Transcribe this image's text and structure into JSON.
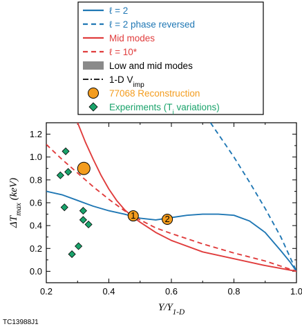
{
  "figure_id": "TC13988J1",
  "colors": {
    "blue": "#1f77b4",
    "red": "#e03c3c",
    "orange": "#f39c1e",
    "green": "#1aa36b",
    "gray": "#8a8a8a"
  },
  "chart_data": {
    "type": "line",
    "title": "",
    "xlabel": {
      "main": "Y/Y",
      "sub": "1-D"
    },
    "ylabel": {
      "main": "ΔT",
      "sub": "max",
      "unit": " (keV)"
    },
    "xlim": [
      0.2,
      1.0
    ],
    "ylim": [
      -0.1,
      1.3
    ],
    "xticks": [
      "0.2",
      "0.4",
      "0.6",
      "0.8",
      "1.0"
    ],
    "yticks": [
      "0.0",
      "0.2",
      "0.4",
      "0.6",
      "0.8",
      "1.0",
      "1.2"
    ],
    "legend_position": "top-center",
    "legend": [
      {
        "key": "l2",
        "pre": "ℓ = 2",
        "sub": "",
        "post": "",
        "color": "#1f77b4",
        "style": "solid"
      },
      {
        "key": "l2pr",
        "pre": "ℓ = 2 phase reversed",
        "sub": "",
        "post": "",
        "color": "#1f77b4",
        "style": "dashed"
      },
      {
        "key": "mid",
        "pre": "Mid modes",
        "sub": "",
        "post": "",
        "color": "#e03c3c",
        "style": "solid"
      },
      {
        "key": "l10",
        "pre": "ℓ = 10*",
        "sub": "",
        "post": "",
        "color": "#e03c3c",
        "style": "dashed"
      },
      {
        "key": "lowmid",
        "pre": "Low and mid modes",
        "sub": "",
        "post": "",
        "color": "#000000",
        "style": "band"
      },
      {
        "key": "vimp",
        "pre": "1-D V",
        "sub": "imp",
        "post": "",
        "color": "#000000",
        "style": "dashdot"
      },
      {
        "key": "recon",
        "pre": "77068 Reconstruction",
        "sub": "",
        "post": "",
        "color": "#f39c1e",
        "style": "circle"
      },
      {
        "key": "exp",
        "pre": "Experiments (T",
        "sub": "i",
        "post": " variations)",
        "color": "#1aa36b",
        "style": "diamond"
      }
    ],
    "series": [
      {
        "name": "ℓ = 2",
        "style": "solid",
        "color": "#1f77b4",
        "x": [
          0.2,
          0.25,
          0.3,
          0.35,
          0.4,
          0.45,
          0.5,
          0.55,
          0.6,
          0.65,
          0.7,
          0.75,
          0.8,
          0.85,
          0.9,
          0.95,
          0.98,
          1.0
        ],
        "y": [
          0.7,
          0.67,
          0.62,
          0.57,
          0.53,
          0.5,
          0.465,
          0.45,
          0.47,
          0.49,
          0.5,
          0.5,
          0.49,
          0.44,
          0.34,
          0.18,
          0.08,
          0.0
        ]
      },
      {
        "name": "ℓ = 2 phase reversed",
        "style": "dashed",
        "color": "#1f77b4",
        "x": [
          0.725,
          0.8,
          0.85,
          0.9,
          0.95,
          1.0
        ],
        "y": [
          1.3,
          1.0,
          0.78,
          0.55,
          0.3,
          0.0
        ]
      },
      {
        "name": "Mid modes",
        "style": "solid",
        "color": "#e03c3c",
        "x": [
          0.3,
          0.325,
          0.35,
          0.375,
          0.4,
          0.425,
          0.45,
          0.475,
          0.5,
          0.55,
          0.6,
          0.7,
          0.8,
          0.9,
          1.0
        ],
        "y": [
          1.3,
          1.13,
          0.98,
          0.84,
          0.72,
          0.62,
          0.54,
          0.48,
          0.43,
          0.34,
          0.27,
          0.17,
          0.11,
          0.05,
          0.0
        ]
      },
      {
        "name": "ℓ = 10*",
        "style": "dashed",
        "color": "#e03c3c",
        "x": [
          0.2,
          0.25,
          0.3,
          0.35,
          0.4,
          0.45,
          0.5,
          0.55,
          0.6,
          0.7,
          0.8,
          0.9,
          1.0
        ],
        "y": [
          1.11,
          0.98,
          0.86,
          0.74,
          0.63,
          0.53,
          0.45,
          0.38,
          0.33,
          0.24,
          0.16,
          0.09,
          0.0
        ]
      }
    ],
    "reconstruction_points": [
      {
        "x": 0.32,
        "y": 0.9,
        "label": ""
      },
      {
        "x": 0.478,
        "y": 0.485,
        "label": "1"
      },
      {
        "x": 0.587,
        "y": 0.455,
        "label": "2"
      }
    ],
    "experiment_points": [
      {
        "x": 0.245,
        "y": 0.84
      },
      {
        "x": 0.262,
        "y": 1.05
      },
      {
        "x": 0.27,
        "y": 0.87
      },
      {
        "x": 0.258,
        "y": 0.56
      },
      {
        "x": 0.318,
        "y": 0.53
      },
      {
        "x": 0.318,
        "y": 0.45
      },
      {
        "x": 0.335,
        "y": 0.41
      },
      {
        "x": 0.303,
        "y": 0.22
      },
      {
        "x": 0.282,
        "y": 0.15
      }
    ]
  }
}
